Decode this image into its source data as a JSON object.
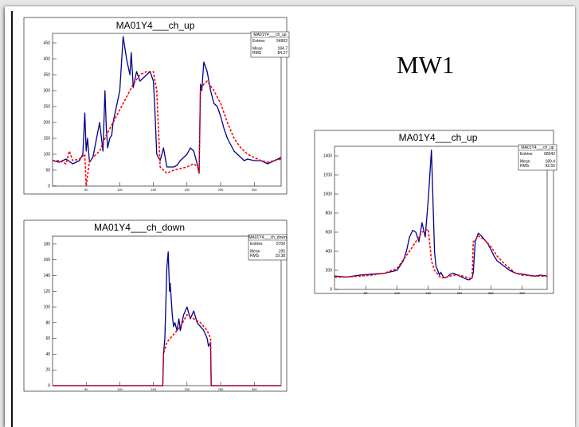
{
  "slide": {
    "title": "MW1"
  },
  "chart_data": [
    {
      "id": "hist-up-left",
      "type": "line",
      "title": "MA01Y4___ch_up",
      "stats": {
        "name": "MA01Y4___ch_up",
        "entries_label": "Entries",
        "entries": "54902",
        "mean_label": "Mean",
        "mean": "184.7",
        "rms_label": "RMS",
        "rms": "84.27"
      },
      "xlim": [
        0,
        340
      ],
      "ylim": [
        0,
        480
      ],
      "yticks": [
        0,
        50,
        100,
        150,
        200,
        250,
        300,
        350,
        400,
        450
      ],
      "xticks": [
        50,
        100,
        150,
        200,
        250,
        300
      ],
      "series": [
        {
          "color": "#00008b",
          "style": "solid",
          "x": [
            0,
            10,
            20,
            30,
            40,
            45,
            48,
            50,
            52,
            55,
            60,
            70,
            75,
            78,
            80,
            82,
            85,
            88,
            90,
            95,
            100,
            105,
            110,
            115,
            117,
            120,
            125,
            130,
            135,
            140,
            145,
            150,
            152,
            155,
            160,
            165,
            170,
            175,
            180,
            185,
            190,
            195,
            200,
            205,
            210,
            215,
            218,
            220,
            222,
            225,
            230,
            235,
            240,
            245,
            250,
            255,
            260,
            265,
            270,
            275,
            280,
            285,
            290,
            300,
            310,
            320,
            330,
            340
          ],
          "y": [
            80,
            75,
            85,
            70,
            80,
            100,
            230,
            110,
            150,
            75,
            90,
            200,
            110,
            300,
            180,
            120,
            150,
            160,
            200,
            250,
            300,
            470,
            400,
            350,
            420,
            310,
            360,
            330,
            340,
            350,
            360,
            330,
            250,
            100,
            80,
            120,
            60,
            60,
            60,
            65,
            80,
            90,
            100,
            120,
            110,
            70,
            40,
            320,
            300,
            390,
            360,
            300,
            260,
            250,
            220,
            180,
            150,
            130,
            110,
            100,
            90,
            80,
            85,
            80,
            80,
            70,
            80,
            90
          ]
        },
        {
          "color": "#ff0000",
          "style": "dashed",
          "x": [
            0,
            10,
            20,
            25,
            30,
            40,
            48,
            50,
            55,
            60,
            70,
            80,
            90,
            100,
            110,
            120,
            130,
            140,
            150,
            155,
            160,
            170,
            180,
            190,
            200,
            210,
            216,
            218,
            220,
            225,
            230,
            240,
            250,
            260,
            270,
            280,
            290,
            300,
            310,
            320,
            330,
            340
          ],
          "y": [
            80,
            80,
            70,
            110,
            80,
            85,
            100,
            0,
            80,
            90,
            110,
            160,
            200,
            240,
            280,
            320,
            350,
            360,
            360,
            300,
            60,
            40,
            50,
            55,
            60,
            70,
            60,
            40,
            300,
            320,
            330,
            300,
            260,
            200,
            150,
            120,
            100,
            90,
            80,
            75,
            80,
            85
          ]
        }
      ]
    },
    {
      "id": "hist-down",
      "type": "line",
      "title": "MA01Y4___ch_down",
      "stats": {
        "name": "MA01Y4___ch_down",
        "entries_label": "Entries",
        "entries": "5700",
        "mean_label": "Mean",
        "mean": "195",
        "rms_label": "RMS",
        "rms": "19.38"
      },
      "xlim": [
        0,
        340
      ],
      "ylim": [
        0,
        190
      ],
      "yticks": [
        0,
        20,
        40,
        60,
        80,
        100,
        120,
        140,
        160,
        180
      ],
      "xticks": [
        50,
        100,
        150,
        200,
        250,
        300
      ],
      "series": [
        {
          "color": "#00008b",
          "style": "solid",
          "x": [
            0,
            164,
            165,
            167,
            170,
            172,
            174,
            175,
            178,
            180,
            182,
            185,
            188,
            190,
            195,
            200,
            205,
            210,
            215,
            220,
            225,
            230,
            232,
            235,
            236,
            237,
            340
          ],
          "y": [
            0,
            0,
            40,
            60,
            150,
            170,
            120,
            130,
            90,
            75,
            80,
            70,
            85,
            70,
            90,
            100,
            85,
            95,
            80,
            75,
            70,
            60,
            50,
            55,
            0,
            0,
            0
          ]
        },
        {
          "color": "#ff0000",
          "style": "dashed",
          "x": [
            0,
            164,
            165,
            170,
            175,
            180,
            190,
            200,
            210,
            220,
            230,
            235,
            236,
            340
          ],
          "y": [
            0,
            0,
            40,
            55,
            60,
            65,
            75,
            90,
            85,
            80,
            70,
            60,
            0,
            0
          ]
        }
      ]
    },
    {
      "id": "hist-up-right",
      "type": "line",
      "title": "MA01Y4___ch_up",
      "stats": {
        "name": "MA01Y4___ch_up",
        "entries_label": "Entries",
        "entries": "68042",
        "mean_label": "Mean",
        "mean": "189.4",
        "rms_label": "RMS",
        "rms": "92.55"
      },
      "xlim": [
        0,
        340
      ],
      "ylim": [
        0,
        1500
      ],
      "yticks": [
        0,
        200,
        400,
        600,
        800,
        1000,
        1200,
        1400
      ],
      "xticks": [
        50,
        100,
        150,
        200,
        250,
        300
      ],
      "series": [
        {
          "color": "#00008b",
          "style": "solid",
          "x": [
            0,
            20,
            40,
            60,
            80,
            100,
            110,
            115,
            120,
            125,
            130,
            135,
            140,
            145,
            150,
            155,
            160,
            162,
            165,
            168,
            170,
            175,
            180,
            185,
            190,
            200,
            210,
            215,
            220,
            222,
            225,
            230,
            235,
            240,
            245,
            250,
            255,
            260,
            270,
            280,
            290,
            300,
            310,
            320,
            330,
            340
          ],
          "y": [
            140,
            130,
            150,
            160,
            170,
            200,
            300,
            400,
            550,
            620,
            600,
            500,
            700,
            550,
            950,
            1460,
            400,
            250,
            200,
            150,
            180,
            120,
            130,
            160,
            170,
            140,
            110,
            100,
            120,
            180,
            500,
            590,
            560,
            520,
            480,
            420,
            350,
            300,
            250,
            200,
            170,
            160,
            150,
            140,
            150,
            140
          ]
        },
        {
          "color": "#ff0000",
          "style": "dashed",
          "x": [
            0,
            20,
            40,
            60,
            80,
            100,
            120,
            140,
            150,
            155,
            160,
            170,
            180,
            190,
            200,
            210,
            220,
            222,
            225,
            230,
            240,
            250,
            260,
            270,
            280,
            290,
            300,
            320,
            340
          ],
          "y": [
            130,
            130,
            140,
            150,
            170,
            220,
            400,
            600,
            630,
            300,
            200,
            120,
            130,
            150,
            150,
            130,
            110,
            500,
            520,
            560,
            520,
            450,
            350,
            280,
            220,
            170,
            150,
            140,
            140
          ]
        }
      ]
    }
  ]
}
